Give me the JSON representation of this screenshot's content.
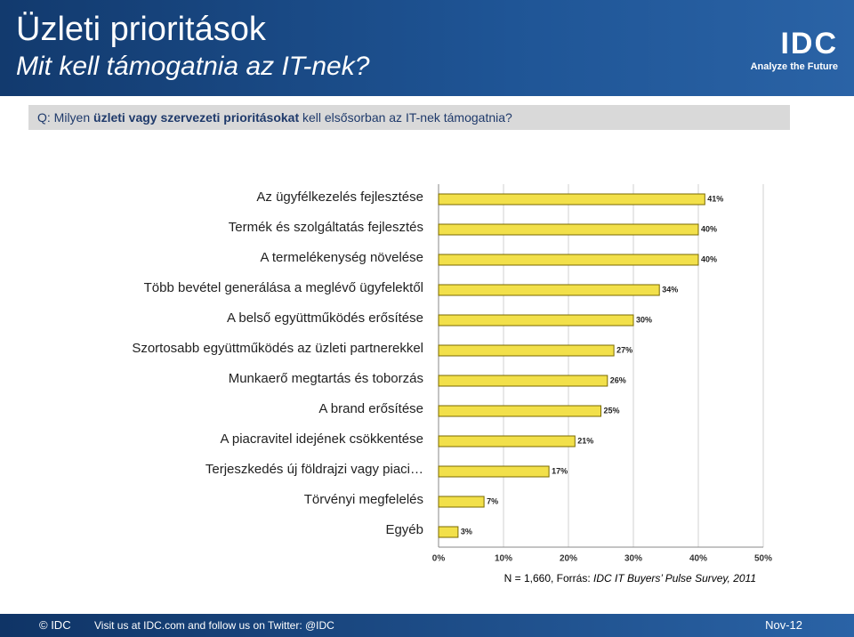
{
  "header": {
    "title": "Üzleti prioritások",
    "subtitle": "Mit kell támogatnia az IT-nek?",
    "logo": "IDC",
    "tagline": "Analyze the Future"
  },
  "question": [
    "Q: Milyen ",
    "üzleti vagy szervezeti prioritásokat",
    " kell elsősorban az IT-nek támogatnia?"
  ],
  "chart_data": {
    "type": "hbar",
    "categories": [
      "Az ügyfélkezelés fejlesztése",
      "Termék és szolgáltatás fejlesztés",
      "A termelékenység növelése",
      "Több bevétel generálása a meglévő ügyfelektől",
      "A belső együttműködés erősítése",
      "Szortosabb együttműködés az üzleti partnerekkel",
      "Munkaerő megtartás és toborzás",
      "A brand erősítése",
      "A piacravitel idejének csökkentése",
      "Terjeszkedés új földrajzi vagy piaci…",
      "Törvényi megfelelés",
      "Egyéb"
    ],
    "values": [
      41,
      40,
      40,
      34,
      30,
      27,
      26,
      25,
      21,
      17,
      7,
      3
    ],
    "value_labels": [
      "41%",
      "40%",
      "40%",
      "34%",
      "30%",
      "27%",
      "26%",
      "25%",
      "21%",
      "17%",
      "7%",
      "3%"
    ],
    "color": "#f2e04a",
    "xlim": [
      0,
      50
    ],
    "xticks": [
      {
        "value": 0,
        "label": "0%"
      },
      {
        "value": 10,
        "label": "10%"
      },
      {
        "value": 20,
        "label": "20%"
      },
      {
        "value": 30,
        "label": "30%"
      },
      {
        "value": 40,
        "label": "40%"
      },
      {
        "value": 50,
        "label": "50%"
      }
    ],
    "grid": true
  },
  "note": [
    "N = 1,660, Forrás: ",
    "IDC IT Buyers’ Pulse Survey, 2011"
  ],
  "footer": {
    "copyright": "© IDC",
    "visit": "Visit us at IDC.com and follow us on Twitter: @IDC",
    "date": "Nov-12"
  }
}
